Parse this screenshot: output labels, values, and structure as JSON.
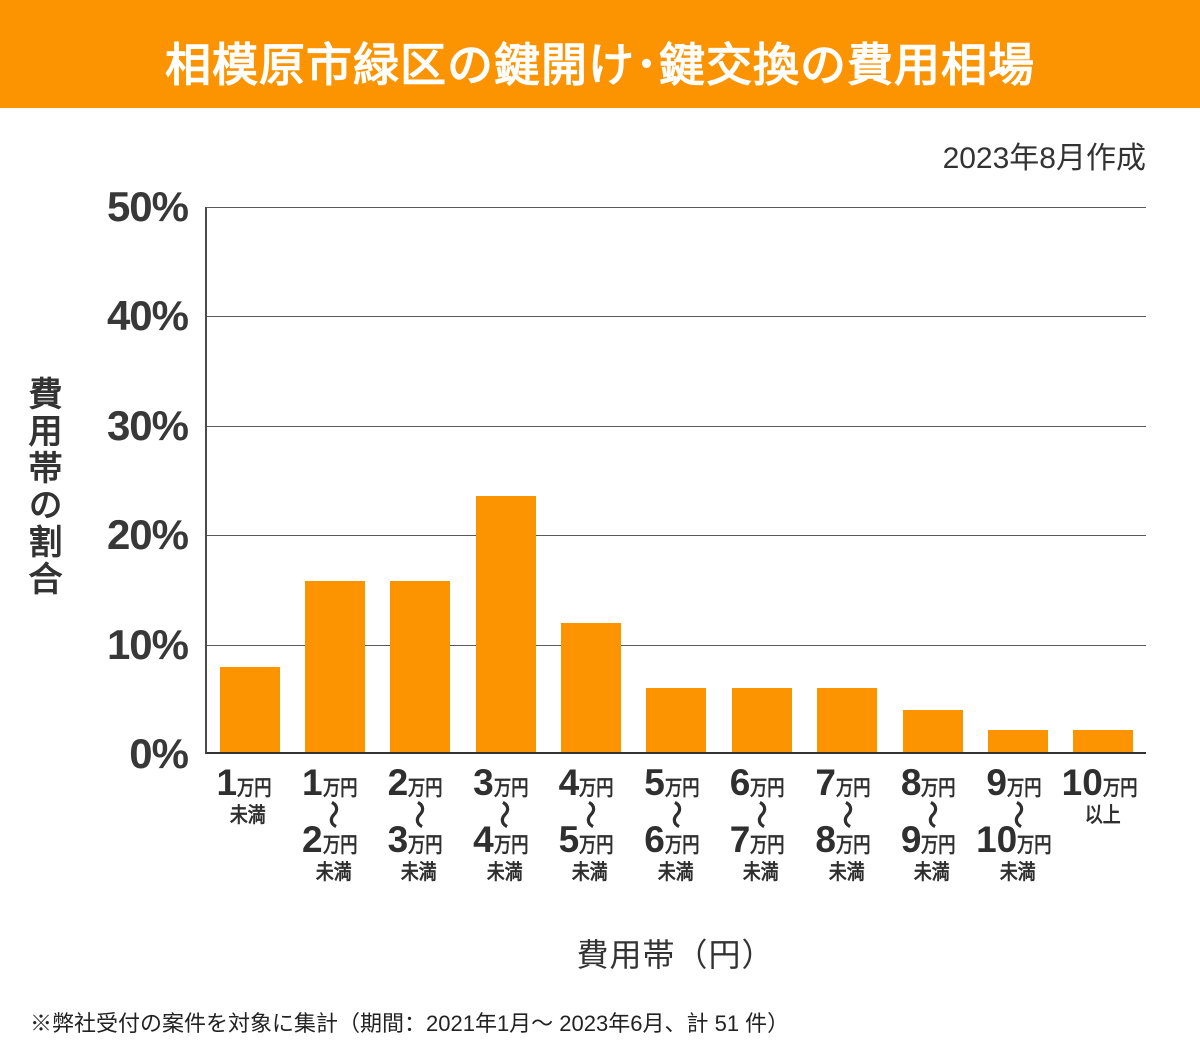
{
  "banner": {
    "title": "相模原市緑区の鍵開け･鍵交換の費用相場",
    "bg_color": "#FB9400"
  },
  "meta": {
    "created_note": "2023年8月作成"
  },
  "chart_data": {
    "type": "bar",
    "title": "相模原市緑区の鍵開け･鍵交換の費用相場",
    "ylabel": "費用帯の割合",
    "xlabel": "費用帯（円）",
    "ylim": [
      0,
      50
    ],
    "y_ticks": [
      "50%",
      "40%",
      "30%",
      "20%",
      "10%",
      "0%"
    ],
    "grid": true,
    "bar_color": "#FB9400",
    "categories": [
      {
        "num": "1",
        "unit": "万円",
        "note": "未満"
      },
      {
        "num": "1",
        "unit": "万円",
        "tilde": "〜",
        "num2": "2",
        "unit2": "万円",
        "note": "未満"
      },
      {
        "num": "2",
        "unit": "万円",
        "tilde": "〜",
        "num2": "3",
        "unit2": "万円",
        "note": "未満"
      },
      {
        "num": "3",
        "unit": "万円",
        "tilde": "〜",
        "num2": "4",
        "unit2": "万円",
        "note": "未満"
      },
      {
        "num": "4",
        "unit": "万円",
        "tilde": "〜",
        "num2": "5",
        "unit2": "万円",
        "note": "未満"
      },
      {
        "num": "5",
        "unit": "万円",
        "tilde": "〜",
        "num2": "6",
        "unit2": "万円",
        "note": "未満"
      },
      {
        "num": "6",
        "unit": "万円",
        "tilde": "〜",
        "num2": "7",
        "unit2": "万円",
        "note": "未満"
      },
      {
        "num": "7",
        "unit": "万円",
        "tilde": "〜",
        "num2": "8",
        "unit2": "万円",
        "note": "未満"
      },
      {
        "num": "8",
        "unit": "万円",
        "tilde": "〜",
        "num2": "9",
        "unit2": "万円",
        "note": "未満"
      },
      {
        "num": "9",
        "unit": "万円",
        "tilde": "〜",
        "num2": "10",
        "unit2": "万円",
        "note": "未満"
      },
      {
        "num": "10",
        "unit": "万円",
        "note": "以上"
      }
    ],
    "values": [
      7.8,
      15.7,
      15.7,
      23.5,
      11.8,
      5.9,
      5.9,
      5.9,
      3.9,
      2.0,
      2.0
    ]
  },
  "footnote": "※弊社受付の案件を対象に集計（期間：2021年1月～ 2023年6月、計 51 件）"
}
